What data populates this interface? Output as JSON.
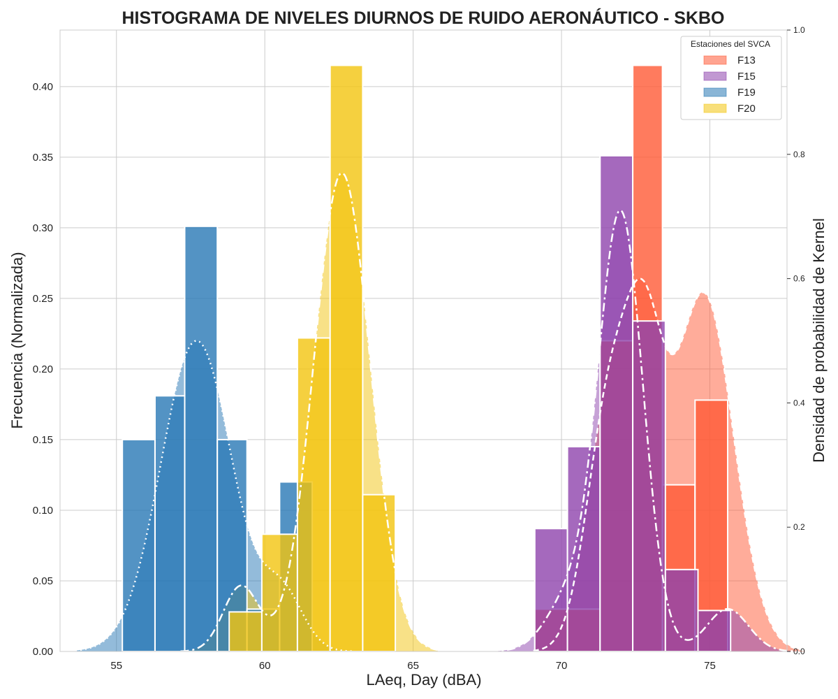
{
  "chart_data": {
    "type": "histogram",
    "title": "HISTOGRAMA DE NIVELES DIURNOS DE RUIDO AERONÁUTICO - SKBO",
    "xlabel": "LAeq, Day (dBA)",
    "ylabel": "Frecuencia (Normalizada)",
    "y2label": "Densidad de probabilidad de Kernel",
    "xlim": [
      53.1,
      77.6
    ],
    "ylim": [
      0,
      0.44
    ],
    "y2lim": [
      0,
      1.0
    ],
    "xticks": [
      55,
      60,
      65,
      70,
      75
    ],
    "yticks": [
      0.0,
      0.05,
      0.1,
      0.15,
      0.2,
      0.25,
      0.3,
      0.35,
      0.4
    ],
    "ytick_labels": [
      "0.00",
      "0.05",
      "0.10",
      "0.15",
      "0.20",
      "0.25",
      "0.30",
      "0.35",
      "0.40"
    ],
    "y2ticks": [
      0.0,
      0.2,
      0.4,
      0.6,
      0.8,
      1.0
    ],
    "y2tick_labels": [
      "0.0",
      "0.2",
      "0.4",
      "0.6",
      "0.8",
      "1.0"
    ],
    "grid": true,
    "legend": {
      "title": "Estaciones del SVCA",
      "placement": "top-right"
    },
    "series": [
      {
        "name": "F13",
        "color": "#ff5a36",
        "bins": [
          {
            "x0": 69.1,
            "x1": 70.2,
            "y": 0.03
          },
          {
            "x0": 70.2,
            "x1": 71.3,
            "y": 0.03
          },
          {
            "x0": 71.3,
            "x1": 72.4,
            "y": 0.22
          },
          {
            "x0": 72.4,
            "x1": 73.4,
            "y": 0.415
          },
          {
            "x0": 73.4,
            "x1": 74.5,
            "y": 0.118
          },
          {
            "x0": 74.5,
            "x1": 75.6,
            "y": 0.178
          }
        ],
        "kde_modes": [
          {
            "mu": 72.8,
            "sd": 0.65,
            "w": 0.3
          },
          {
            "mu": 71.6,
            "sd": 0.75,
            "w": 0.28
          },
          {
            "mu": 74.8,
            "sd": 1.0,
            "w": 0.42
          }
        ],
        "kde_peak": 0.6,
        "kde_style": "dashed"
      },
      {
        "name": "F15",
        "color": "#8e44ad",
        "bins": [
          {
            "x0": 69.1,
            "x1": 70.2,
            "y": 0.087
          },
          {
            "x0": 70.2,
            "x1": 71.3,
            "y": 0.145
          },
          {
            "x0": 71.3,
            "x1": 72.4,
            "y": 0.351
          },
          {
            "x0": 72.4,
            "x1": 73.5,
            "y": 0.234
          },
          {
            "x0": 73.5,
            "x1": 74.6,
            "y": 0.058
          },
          {
            "x0": 74.6,
            "x1": 75.7,
            "y": 0.029
          }
        ],
        "kde_modes": [
          {
            "mu": 72.0,
            "sd": 0.75,
            "w": 0.82
          },
          {
            "mu": 70.3,
            "sd": 0.8,
            "w": 0.1
          },
          {
            "mu": 75.6,
            "sd": 0.7,
            "w": 0.08
          }
        ],
        "kde_peak": 0.71,
        "kde_style": "dashdot"
      },
      {
        "name": "F19",
        "color": "#2878b5",
        "bins": [
          {
            "x0": 55.2,
            "x1": 56.3,
            "y": 0.15
          },
          {
            "x0": 56.3,
            "x1": 57.3,
            "y": 0.181
          },
          {
            "x0": 57.3,
            "x1": 58.4,
            "y": 0.301
          },
          {
            "x0": 58.4,
            "x1": 59.4,
            "y": 0.15
          },
          {
            "x0": 59.4,
            "x1": 60.5,
            "y": 0.03
          },
          {
            "x0": 60.5,
            "x1": 61.6,
            "y": 0.12
          }
        ],
        "kde_modes": [
          {
            "mu": 57.7,
            "sd": 1.2,
            "w": 0.85
          },
          {
            "mu": 60.6,
            "sd": 0.7,
            "w": 0.15
          }
        ],
        "kde_peak": 0.5,
        "kde_style": "dotted"
      },
      {
        "name": "F20",
        "color": "#f2c40f",
        "bins": [
          {
            "x0": 58.8,
            "x1": 59.9,
            "y": 0.028
          },
          {
            "x0": 59.9,
            "x1": 61.1,
            "y": 0.083
          },
          {
            "x0": 61.1,
            "x1": 62.2,
            "y": 0.222
          },
          {
            "x0": 62.2,
            "x1": 63.3,
            "y": 0.415
          },
          {
            "x0": 63.3,
            "x1": 64.4,
            "y": 0.111
          }
        ],
        "kde_modes": [
          {
            "mu": 62.6,
            "sd": 0.95,
            "w": 0.88
          },
          {
            "mu": 59.2,
            "sd": 0.6,
            "w": 0.12
          }
        ],
        "kde_peak": 0.77,
        "kde_style": "dashdot"
      }
    ]
  }
}
